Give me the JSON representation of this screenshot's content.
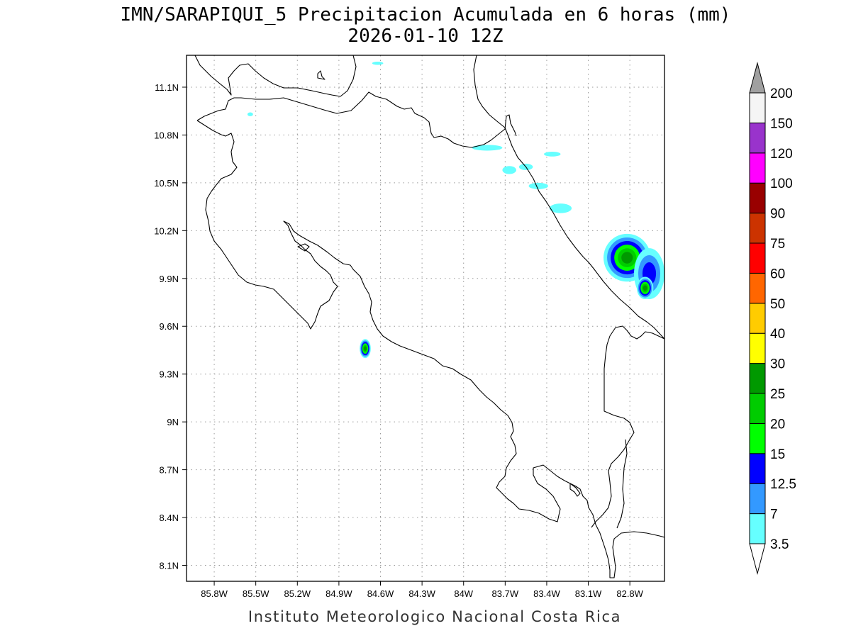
{
  "title": {
    "line1": "IMN/SARAPIQUI_5 Precipitacion Acumulada en 6 horas (mm)",
    "line2": "2026-01-10 12Z"
  },
  "footer": "Instituto Meteorologico Nacional Costa Rica",
  "map": {
    "lon_range": [
      -86.0,
      -82.55
    ],
    "lat_range": [
      8.0,
      11.3
    ],
    "lon_ticks": [
      {
        "value": -85.8,
        "label": "85.8W"
      },
      {
        "value": -85.5,
        "label": "85.5W"
      },
      {
        "value": -85.2,
        "label": "85.2W"
      },
      {
        "value": -84.9,
        "label": "84.9W"
      },
      {
        "value": -84.6,
        "label": "84.6W"
      },
      {
        "value": -84.3,
        "label": "84.3W"
      },
      {
        "value": -84.0,
        "label": "84W"
      },
      {
        "value": -83.7,
        "label": "83.7W"
      },
      {
        "value": -83.4,
        "label": "83.4W"
      },
      {
        "value": -83.1,
        "label": "83.1W"
      },
      {
        "value": -82.8,
        "label": "82.8W"
      }
    ],
    "lat_ticks": [
      {
        "value": 11.1,
        "label": "11.1N"
      },
      {
        "value": 10.8,
        "label": "10.8N"
      },
      {
        "value": 10.5,
        "label": "10.5N"
      },
      {
        "value": 10.2,
        "label": "10.2N"
      },
      {
        "value": 9.9,
        "label": "9.9N"
      },
      {
        "value": 9.6,
        "label": "9.6N"
      },
      {
        "value": 9.3,
        "label": "9.3N"
      },
      {
        "value": 9.0,
        "label": "9N"
      },
      {
        "value": 8.7,
        "label": "8.7N"
      },
      {
        "value": 8.4,
        "label": "8.4N"
      },
      {
        "value": 8.1,
        "label": "8.1N"
      }
    ],
    "grid": "dotted"
  },
  "legend": {
    "over_color": "#a0a0a0",
    "under_color": "#ffffff",
    "levels": [
      {
        "label": "3.5",
        "color": "#66ffff"
      },
      {
        "label": "7",
        "color": "#3399ff"
      },
      {
        "label": "12.5",
        "color": "#0000ff"
      },
      {
        "label": "15",
        "color": "#00ff00"
      },
      {
        "label": "20",
        "color": "#00cc00"
      },
      {
        "label": "25",
        "color": "#009900"
      },
      {
        "label": "30",
        "color": "#ffff00"
      },
      {
        "label": "40",
        "color": "#ffcc00"
      },
      {
        "label": "50",
        "color": "#ff6600"
      },
      {
        "label": "60",
        "color": "#ff0000"
      },
      {
        "label": "75",
        "color": "#cc3300"
      },
      {
        "label": "90",
        "color": "#990000"
      },
      {
        "label": "100",
        "color": "#ff00ff"
      },
      {
        "label": "120",
        "color": "#9933cc"
      },
      {
        "label": "150",
        "color": "#f5f5f5"
      },
      {
        "label": "200",
        "color": "#ffffff"
      }
    ]
  },
  "precipitation": [
    {
      "name": "cell-lake-nicaragua-north",
      "lon": -84.62,
      "lat": 11.25,
      "rx": 0.04,
      "ry": 0.01,
      "levels": [
        "#66ffff"
      ]
    },
    {
      "name": "cell-lake-nicaragua-west",
      "lon": -85.54,
      "lat": 10.93,
      "rx": 0.02,
      "ry": 0.012,
      "levels": [
        "#66ffff"
      ]
    },
    {
      "name": "cell-coast-north-1",
      "lon": -83.83,
      "lat": 10.72,
      "rx": 0.11,
      "ry": 0.018,
      "levels": [
        "#66ffff"
      ]
    },
    {
      "name": "cell-coast-north-2",
      "lon": -83.36,
      "lat": 10.68,
      "rx": 0.06,
      "ry": 0.015,
      "levels": [
        "#66ffff"
      ]
    },
    {
      "name": "cell-coast-north-3",
      "lon": -83.55,
      "lat": 10.6,
      "rx": 0.05,
      "ry": 0.02,
      "levels": [
        "#66ffff"
      ]
    },
    {
      "name": "cell-coast-north-4",
      "lon": -83.67,
      "lat": 10.58,
      "rx": 0.05,
      "ry": 0.025,
      "levels": [
        "#66ffff"
      ]
    },
    {
      "name": "cell-coast-north-5",
      "lon": -83.46,
      "lat": 10.48,
      "rx": 0.07,
      "ry": 0.02,
      "levels": [
        "#66ffff"
      ]
    },
    {
      "name": "cell-coast-north-6",
      "lon": -83.3,
      "lat": 10.34,
      "rx": 0.08,
      "ry": 0.03,
      "levels": [
        "#66ffff"
      ]
    },
    {
      "name": "cell-caribbean-main",
      "lon": -82.82,
      "lat": 10.03,
      "rx": 0.17,
      "ry": 0.15,
      "levels": [
        "#66ffff",
        "#3399ff",
        "#0000ff",
        "#00ff00",
        "#00cc00",
        "#009900"
      ]
    },
    {
      "name": "cell-caribbean-east",
      "lon": -82.66,
      "lat": 9.93,
      "rx": 0.11,
      "ry": 0.16,
      "levels": [
        "#66ffff",
        "#3399ff",
        "#0000ff"
      ]
    },
    {
      "name": "cell-caribbean-southeast",
      "lon": -82.69,
      "lat": 9.84,
      "rx": 0.06,
      "ry": 0.07,
      "levels": [
        "#66ffff",
        "#3399ff",
        "#0000ff",
        "#00ff00",
        "#00cc00",
        "#009900"
      ]
    },
    {
      "name": "cell-gulf-nicoya",
      "lon": -84.71,
      "lat": 9.46,
      "rx": 0.04,
      "ry": 0.06,
      "levels": [
        "#66ffff",
        "#3399ff",
        "#0000ff",
        "#00ff00",
        "#00cc00",
        "#009900"
      ]
    }
  ]
}
